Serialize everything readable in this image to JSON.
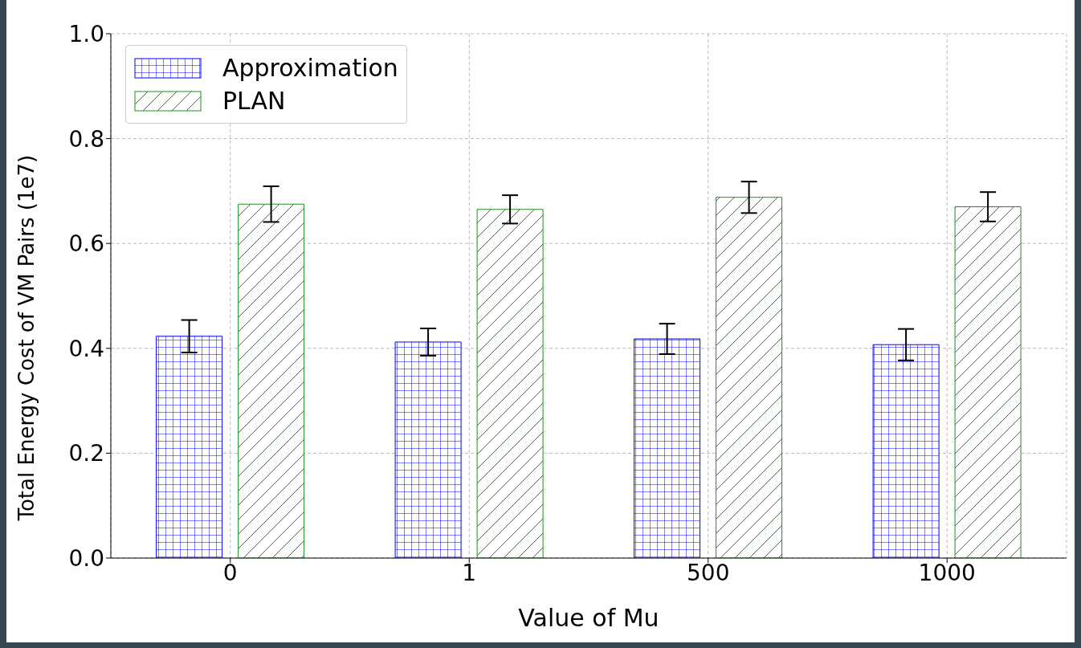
{
  "chart_data": {
    "type": "bar",
    "xlabel": "Value of Mu",
    "ylabel": "Total Energy Cost of VM Pairs (1e7)",
    "categories": [
      "0",
      "1",
      "500",
      "1000"
    ],
    "series": [
      {
        "name": "Approximation",
        "color": "#0000ff",
        "values": [
          0.423,
          0.412,
          0.418,
          0.407
        ],
        "errors": [
          0.031,
          0.026,
          0.029,
          0.03
        ]
      },
      {
        "name": "PLAN",
        "color": "#228b22",
        "values": [
          0.675,
          0.665,
          0.688,
          0.67
        ],
        "errors": [
          0.034,
          0.027,
          0.03,
          0.028
        ]
      }
    ],
    "ylim": [
      0,
      1
    ],
    "yticks": [
      {
        "value": 0,
        "label": "0.0"
      },
      {
        "value": 0.2,
        "label": "0.2"
      },
      {
        "value": 0.4,
        "label": "0.4"
      },
      {
        "value": 0.6,
        "label": "0.6"
      },
      {
        "value": 0.8,
        "label": "0.8"
      },
      {
        "value": 1,
        "label": "1.0"
      }
    ],
    "grid": true,
    "legend": "top left"
  }
}
